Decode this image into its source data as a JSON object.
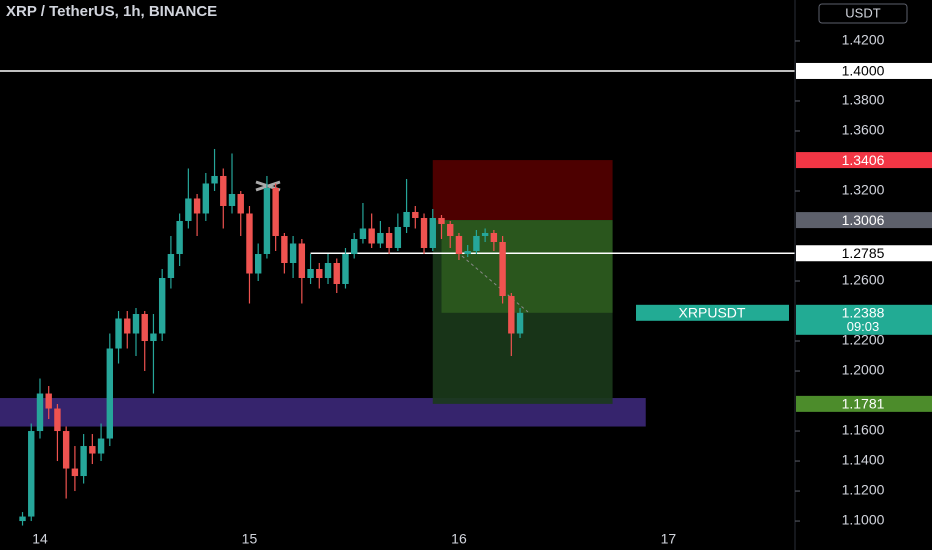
{
  "chart_data": {
    "type": "candlestick",
    "title": "XRP / TetherUS, 1h, BINANCE",
    "currency": "USDT",
    "up_color": "#26a69a",
    "down_color": "#ef5350",
    "xlim": [
      -4.58,
      86.5
    ],
    "ylim": [
      1.0807,
      1.4473
    ],
    "xticks": [
      {
        "value": 0,
        "label": "14"
      },
      {
        "value": 24,
        "label": "15"
      },
      {
        "value": 48,
        "label": "16"
      },
      {
        "value": 72,
        "label": "17"
      }
    ],
    "yticks": [
      {
        "value": 1.42,
        "label": "1.4200"
      },
      {
        "value": 1.38,
        "label": "1.3800"
      },
      {
        "value": 1.36,
        "label": "1.3600"
      },
      {
        "value": 1.32,
        "label": "1.3200"
      },
      {
        "value": 1.26,
        "label": "1.2600"
      },
      {
        "value": 1.22,
        "label": "1.2200"
      },
      {
        "value": 1.2,
        "label": "1.2000"
      },
      {
        "value": 1.16,
        "label": "1.1600"
      },
      {
        "value": 1.14,
        "label": "1.1400"
      },
      {
        "value": 1.12,
        "label": "1.1200"
      },
      {
        "value": 1.1,
        "label": "1.1000"
      }
    ],
    "x": [
      -2,
      -1,
      0,
      1,
      2,
      3,
      4,
      5,
      6,
      7,
      8,
      9,
      10,
      11,
      12,
      13,
      14,
      15,
      16,
      17,
      18,
      19,
      20,
      21,
      22,
      23,
      24,
      25,
      26,
      27,
      28,
      29,
      30,
      31,
      32,
      33,
      34,
      35,
      36,
      37,
      38,
      39,
      40,
      41,
      42,
      43,
      44,
      45,
      46,
      47,
      48,
      49,
      50,
      51,
      52,
      53,
      54,
      55
    ],
    "open": [
      1.1,
      1.103,
      1.16,
      1.185,
      1.175,
      1.16,
      1.135,
      1.13,
      1.15,
      1.145,
      1.155,
      1.215,
      1.235,
      1.225,
      1.238,
      1.22,
      1.225,
      1.262,
      1.278,
      1.3,
      1.315,
      1.305,
      1.325,
      1.33,
      1.31,
      1.318,
      1.305,
      1.265,
      1.278,
      1.322,
      1.29,
      1.272,
      1.285,
      1.262,
      1.268,
      1.262,
      1.272,
      1.258,
      1.278,
      1.288,
      1.295,
      1.285,
      1.292,
      1.282,
      1.296,
      1.306,
      1.302,
      1.282,
      1.302,
      1.298,
      1.29,
      1.278,
      1.28,
      1.29,
      1.292,
      1.286,
      1.25,
      1.225
    ],
    "high": [
      1.106,
      1.165,
      1.195,
      1.19,
      1.178,
      1.163,
      1.15,
      1.158,
      1.158,
      1.165,
      1.225,
      1.24,
      1.24,
      1.242,
      1.24,
      1.238,
      1.268,
      1.29,
      1.305,
      1.335,
      1.318,
      1.332,
      1.348,
      1.335,
      1.345,
      1.32,
      1.31,
      1.285,
      1.33,
      1.325,
      1.292,
      1.29,
      1.288,
      1.278,
      1.272,
      1.278,
      1.275,
      1.282,
      1.292,
      1.312,
      1.305,
      1.3,
      1.296,
      1.305,
      1.328,
      1.31,
      1.305,
      1.308,
      1.304,
      1.3,
      1.292,
      1.284,
      1.294,
      1.295,
      1.294,
      1.29,
      1.252,
      1.242
    ],
    "low": [
      1.097,
      1.1,
      1.155,
      1.168,
      1.14,
      1.115,
      1.12,
      1.125,
      1.138,
      1.14,
      1.15,
      1.205,
      1.215,
      1.21,
      1.2,
      1.185,
      1.22,
      1.255,
      1.27,
      1.295,
      1.29,
      1.3,
      1.32,
      1.295,
      1.305,
      1.29,
      1.245,
      1.26,
      1.275,
      1.28,
      1.265,
      1.262,
      1.245,
      1.258,
      1.255,
      1.258,
      1.252,
      1.255,
      1.275,
      1.285,
      1.282,
      1.282,
      1.278,
      1.28,
      1.292,
      1.295,
      1.278,
      1.28,
      1.288,
      1.282,
      1.274,
      1.276,
      1.278,
      1.286,
      1.28,
      1.245,
      1.21,
      1.222
    ],
    "close": [
      1.103,
      1.16,
      1.185,
      1.175,
      1.16,
      1.135,
      1.13,
      1.15,
      1.145,
      1.155,
      1.215,
      1.235,
      1.225,
      1.238,
      1.22,
      1.225,
      1.262,
      1.278,
      1.3,
      1.315,
      1.305,
      1.325,
      1.33,
      1.31,
      1.318,
      1.305,
      1.265,
      1.278,
      1.322,
      1.29,
      1.272,
      1.285,
      1.262,
      1.268,
      1.262,
      1.272,
      1.258,
      1.278,
      1.288,
      1.295,
      1.285,
      1.292,
      1.282,
      1.296,
      1.306,
      1.302,
      1.282,
      1.302,
      1.298,
      1.29,
      1.278,
      1.28,
      1.29,
      1.292,
      1.286,
      1.25,
      1.225,
      1.2388
    ],
    "levels": [
      {
        "value": 1.4,
        "label": "1.4000",
        "color": "#ffffff",
        "text_color": "#000000",
        "line": true
      },
      {
        "value": 1.3406,
        "label": "1.3406",
        "color": "#f23645",
        "text_color": "#ffffff",
        "line": false
      },
      {
        "value": 1.3006,
        "label": "1.3006",
        "color": "#5d606b",
        "text_color": "#ffffff",
        "line": false
      },
      {
        "value": 1.2785,
        "label": "1.2785",
        "color": "#ffffff",
        "text_color": "#000000",
        "line": true,
        "x_start": 31
      },
      {
        "value": 1.1781,
        "label": "1.1781",
        "color": "#4c8c2b",
        "text_color": "#ffffff",
        "line": false
      }
    ],
    "current": {
      "symbol": "XRPUSDT",
      "price": 1.2388,
      "price_label": "1.2388",
      "countdown": "09:03",
      "color": "#22ab94"
    },
    "zone": {
      "low": 1.163,
      "high": 1.182,
      "x_end": 69.4,
      "color": "#3f2a80"
    },
    "position": {
      "stop": 1.3406,
      "entry": 1.3006,
      "target": 1.1781,
      "x_start": 45,
      "x_end": 65.6
    }
  }
}
